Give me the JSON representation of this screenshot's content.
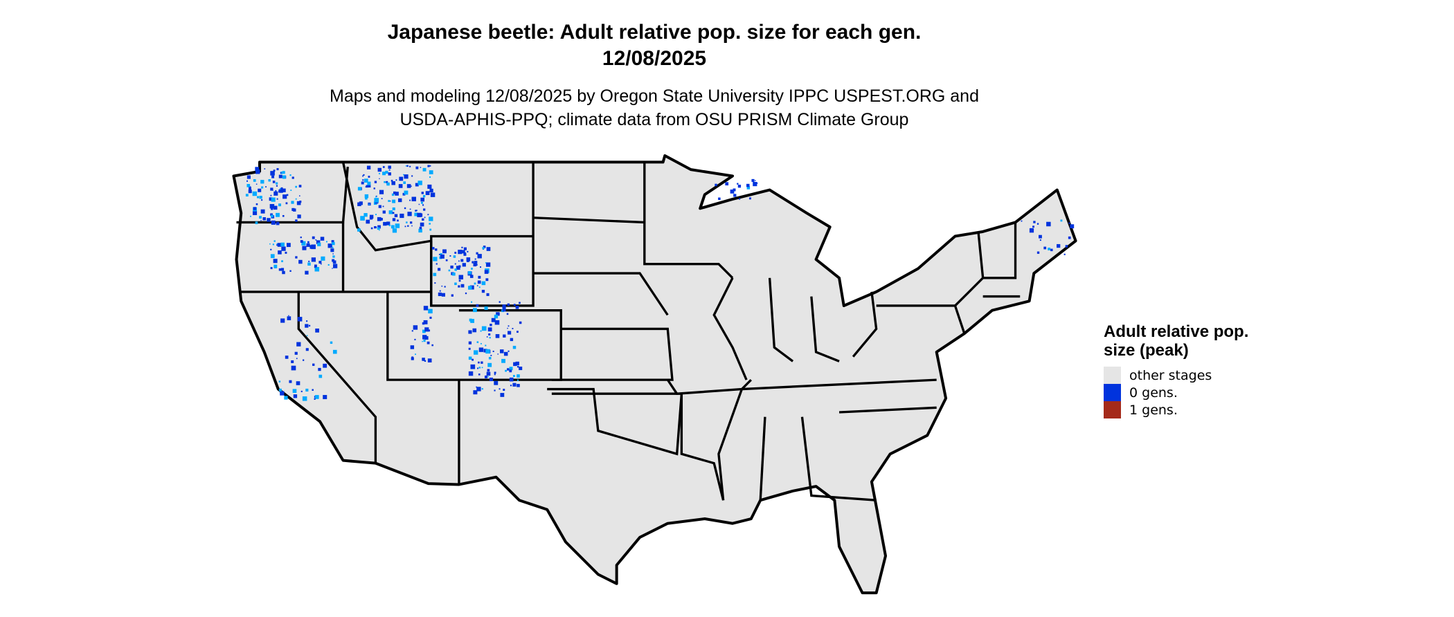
{
  "title": {
    "line1": "Japanese beetle: Adult relative pop. size for each gen.",
    "line2": "12/08/2025"
  },
  "subtitle": {
    "line1": "Maps and modeling 12/08/2025 by Oregon State University IPPC USPEST.ORG and",
    "line2": "USDA-APHIS-PPQ; climate data from OSU PRISM Climate Group"
  },
  "map": {
    "region": "contiguous United States",
    "base_color": "#e5e5e5",
    "border_color": "#000000"
  },
  "legend": {
    "title": "Adult relative pop. size (peak)",
    "items": [
      {
        "label": "other stages",
        "color": "#e5e5e5"
      },
      {
        "label": "0 gens.",
        "color": "#0033dd"
      },
      {
        "label": "1 gens.",
        "color": "#a52a1a"
      }
    ]
  }
}
